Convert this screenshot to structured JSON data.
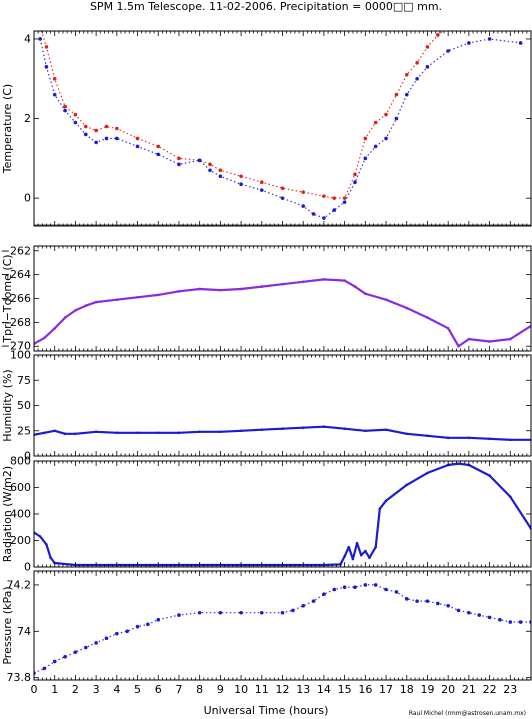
{
  "title": "SPM 1.5m Telescope. 11-02-2006. Precipitation = 0000□□ mm.",
  "credit": "Raul Michel (rmm@astrosen.unam.mx)",
  "colors": {
    "red": "#e0201a",
    "blue": "#1b1bd2",
    "purple": "#8a2be2",
    "frame": "#000000",
    "ref_line": "#555555"
  },
  "chart_data": [
    {
      "id": "temperature",
      "type": "scatter",
      "ylabel": "Temperature (C)",
      "ylim": [
        -0.7,
        4.2
      ],
      "yticks": [
        0,
        2,
        4
      ],
      "ytick_labels": [
        "0",
        "2",
        "4"
      ],
      "xlim": [
        0,
        24
      ],
      "reference_line_y": -0.7,
      "series": [
        {
          "color": "red",
          "x": [
            0.3,
            0.6,
            1,
            1.5,
            2,
            2.5,
            3,
            3.5,
            4,
            5,
            6,
            7,
            8,
            8.5,
            9,
            10,
            11,
            12,
            13,
            14,
            14.5,
            15,
            15.5,
            16,
            16.5,
            17,
            17.5,
            18,
            18.5,
            19,
            19.5,
            20
          ],
          "y": [
            4.3,
            3.8,
            3.0,
            2.3,
            2.1,
            1.8,
            1.7,
            1.8,
            1.75,
            1.5,
            1.3,
            1.0,
            0.95,
            0.85,
            0.7,
            0.55,
            0.4,
            0.25,
            0.15,
            0.05,
            0.0,
            0.0,
            0.6,
            1.5,
            1.9,
            2.1,
            2.6,
            3.1,
            3.4,
            3.8,
            4.1,
            4.3
          ]
        },
        {
          "color": "blue",
          "x": [
            0.3,
            0.6,
            1,
            1.5,
            2,
            2.5,
            3,
            3.5,
            4,
            5,
            6,
            7,
            8,
            8.5,
            9,
            10,
            11,
            12,
            13,
            13.5,
            14,
            14.5,
            15,
            15.5,
            16,
            16.5,
            17,
            17.5,
            18,
            18.5,
            19,
            20,
            21,
            22,
            23.5
          ],
          "y": [
            4.0,
            3.3,
            2.6,
            2.2,
            1.9,
            1.6,
            1.4,
            1.5,
            1.5,
            1.3,
            1.1,
            0.85,
            0.95,
            0.7,
            0.55,
            0.35,
            0.2,
            0.0,
            -0.2,
            -0.4,
            -0.5,
            -0.3,
            -0.1,
            0.4,
            1.0,
            1.3,
            1.5,
            2.0,
            2.6,
            3.0,
            3.3,
            3.7,
            3.9,
            4.0,
            3.9
          ]
        }
      ]
    },
    {
      "id": "tpri_tdome",
      "type": "line",
      "ylabel": "Tpri−Tdome (C)",
      "ylim": [
        -270.4,
        -261.6
      ],
      "yticks": [
        -270,
        -268,
        -266,
        -264,
        -262
      ],
      "ytick_labels": [
        "−270",
        "−268",
        "−266",
        "−264",
        "−262"
      ],
      "xlim": [
        0,
        24
      ],
      "series": [
        {
          "color": "purple",
          "x": [
            0,
            0.5,
            1,
            1.5,
            2,
            2.5,
            3,
            4,
            5,
            6,
            7,
            8,
            9,
            10,
            11,
            12,
            13,
            14,
            15,
            15.5,
            16,
            17,
            18,
            19,
            20,
            20.5,
            21,
            22,
            23,
            24
          ],
          "y": [
            -269.8,
            -269.3,
            -268.5,
            -267.6,
            -267.0,
            -266.6,
            -266.3,
            -266.1,
            -265.9,
            -265.7,
            -265.4,
            -265.2,
            -265.3,
            -265.2,
            -265.0,
            -264.8,
            -264.6,
            -264.4,
            -264.5,
            -265.0,
            -265.6,
            -266.1,
            -266.8,
            -267.6,
            -268.5,
            -270.0,
            -269.4,
            -269.6,
            -269.4,
            -268.3
          ]
        }
      ]
    },
    {
      "id": "humidity",
      "type": "line",
      "ylabel": "Humidity (%)",
      "ylim": [
        0,
        100
      ],
      "yticks": [
        0,
        25,
        50,
        75,
        100
      ],
      "ytick_labels": [
        "0",
        "25",
        "50",
        "75",
        "100"
      ],
      "xlim": [
        0,
        24
      ],
      "series": [
        {
          "color": "blue",
          "x": [
            0,
            0.5,
            1,
            1.5,
            2,
            3,
            4,
            5,
            6,
            7,
            8,
            9,
            10,
            11,
            12,
            13,
            14,
            15,
            16,
            17,
            18,
            19,
            20,
            21,
            22,
            23,
            24
          ],
          "y": [
            21,
            23,
            25,
            22,
            22,
            24,
            23,
            23,
            23,
            23,
            24,
            24,
            25,
            26,
            27,
            28,
            29,
            27,
            25,
            26,
            22,
            20,
            18,
            18,
            17,
            16,
            16
          ]
        }
      ]
    },
    {
      "id": "radiation",
      "type": "line",
      "ylabel": "Radiation (W/m2)",
      "ylim": [
        0,
        800
      ],
      "yticks": [
        0,
        200,
        400,
        600,
        800
      ],
      "ytick_labels": [
        "0",
        "200",
        "400",
        "600",
        "800"
      ],
      "xlim": [
        0,
        24
      ],
      "series": [
        {
          "color": "blue",
          "x": [
            0,
            0.3,
            0.6,
            0.8,
            1,
            2,
            4,
            6,
            8,
            10,
            12,
            14,
            14.8,
            15,
            15.2,
            15.4,
            15.6,
            15.8,
            16,
            16.2,
            16.5,
            16.7,
            17,
            18,
            19,
            20,
            20.5,
            21,
            22,
            23,
            24
          ],
          "y": [
            260,
            230,
            170,
            70,
            30,
            15,
            15,
            15,
            15,
            15,
            15,
            15,
            20,
            80,
            150,
            60,
            180,
            90,
            120,
            70,
            150,
            440,
            500,
            620,
            710,
            770,
            780,
            770,
            690,
            530,
            290
          ]
        }
      ]
    },
    {
      "id": "pressure",
      "type": "scatter",
      "ylabel": "Pressure (kPa)",
      "ylim": [
        73.79,
        74.26
      ],
      "yticks": [
        73.8,
        74,
        74.2
      ],
      "ytick_labels": [
        "73.8",
        "74",
        "74.2"
      ],
      "xlim": [
        0,
        24
      ],
      "xticks": [
        0,
        1,
        2,
        3,
        4,
        5,
        6,
        7,
        8,
        9,
        10,
        11,
        12,
        13,
        14,
        15,
        16,
        17,
        18,
        19,
        20,
        21,
        22,
        23
      ],
      "xtick_labels": [
        "0",
        "1",
        "2",
        "3",
        "4",
        "5",
        "6",
        "7",
        "8",
        "9",
        "10",
        "11",
        "12",
        "13",
        "14",
        "15",
        "16",
        "17",
        "18",
        "19",
        "20",
        "21",
        "22",
        "23"
      ],
      "xlabel": "Universal Time (hours)",
      "series": [
        {
          "color": "blue",
          "x": [
            0,
            0.5,
            1,
            1.5,
            2,
            2.5,
            3,
            3.5,
            4,
            4.5,
            5,
            5.5,
            6,
            7,
            8,
            9,
            10,
            11,
            12,
            12.5,
            13,
            13.5,
            14,
            14.5,
            15,
            15.5,
            16,
            16.5,
            17,
            17.5,
            18,
            18.5,
            19,
            19.5,
            20,
            20.5,
            21,
            21.5,
            22,
            22.5,
            23,
            23.5,
            24
          ],
          "y": [
            73.82,
            73.84,
            73.87,
            73.89,
            73.91,
            73.93,
            73.95,
            73.97,
            73.99,
            74.0,
            74.02,
            74.03,
            74.05,
            74.07,
            74.08,
            74.08,
            74.08,
            74.08,
            74.08,
            74.09,
            74.11,
            74.13,
            74.16,
            74.18,
            74.19,
            74.19,
            74.2,
            74.2,
            74.18,
            74.17,
            74.14,
            74.13,
            74.13,
            74.12,
            74.11,
            74.09,
            74.08,
            74.07,
            74.06,
            74.05,
            74.04,
            74.04,
            74.04
          ]
        }
      ]
    }
  ]
}
